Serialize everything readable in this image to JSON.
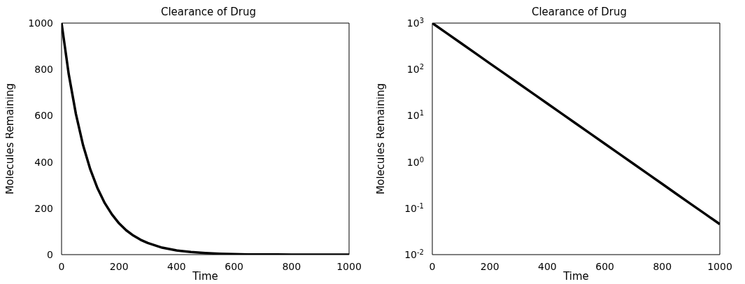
{
  "chart_data": [
    {
      "type": "line",
      "title": "Clearance of Drug",
      "xlabel": "Time",
      "ylabel": "Molecules Remaining",
      "x": [
        0,
        25,
        50,
        75,
        100,
        125,
        150,
        175,
        200,
        225,
        250,
        275,
        300,
        350,
        400,
        450,
        500,
        550,
        600,
        650,
        700,
        750,
        800,
        850,
        900,
        950,
        1000
      ],
      "values": [
        1000,
        779,
        607,
        472,
        368,
        287,
        223,
        174,
        135,
        105,
        82,
        64,
        50,
        30,
        18,
        11,
        7,
        4,
        2,
        1,
        1,
        1,
        0,
        0,
        0,
        0,
        0
      ],
      "color": "#000000",
      "xlim": [
        0,
        1000
      ],
      "xticks": [
        0,
        200,
        400,
        600,
        800,
        1000
      ],
      "ylim": [
        0,
        1000
      ],
      "yticks": [
        0,
        200,
        400,
        600,
        800,
        1000
      ]
    },
    {
      "type": "line",
      "title": "Clearance of Drug",
      "xlabel": "Time",
      "ylabel": "Molecules Remaining",
      "log": true,
      "x": [
        0,
        50,
        100,
        150,
        200,
        250,
        300,
        350,
        400,
        450,
        500,
        550,
        600,
        650,
        700,
        750,
        800,
        850,
        900,
        950,
        1000
      ],
      "values": [
        1000,
        607,
        368,
        223,
        135,
        82.1,
        49.8,
        30.2,
        18.3,
        11.1,
        6.74,
        4.09,
        2.48,
        1.5,
        0.912,
        0.553,
        0.335,
        0.203,
        0.123,
        0.075,
        0.0454
      ],
      "color": "#000000",
      "xlim": [
        0,
        1000
      ],
      "xticks": [
        0,
        200,
        400,
        600,
        800,
        1000
      ],
      "ylim": [
        0.01,
        1000
      ],
      "yticks": [
        {
          "value": 0.01,
          "label": "10$^{-2}$"
        },
        {
          "value": 0.1,
          "label": "10$^{-1}$"
        },
        {
          "value": 1,
          "label": "10$^{0}$"
        },
        {
          "value": 10,
          "label": "10$^{1}$"
        },
        {
          "value": 100,
          "label": "10$^{2}$"
        },
        {
          "value": 1000,
          "label": "10$^{3}$"
        }
      ]
    }
  ]
}
